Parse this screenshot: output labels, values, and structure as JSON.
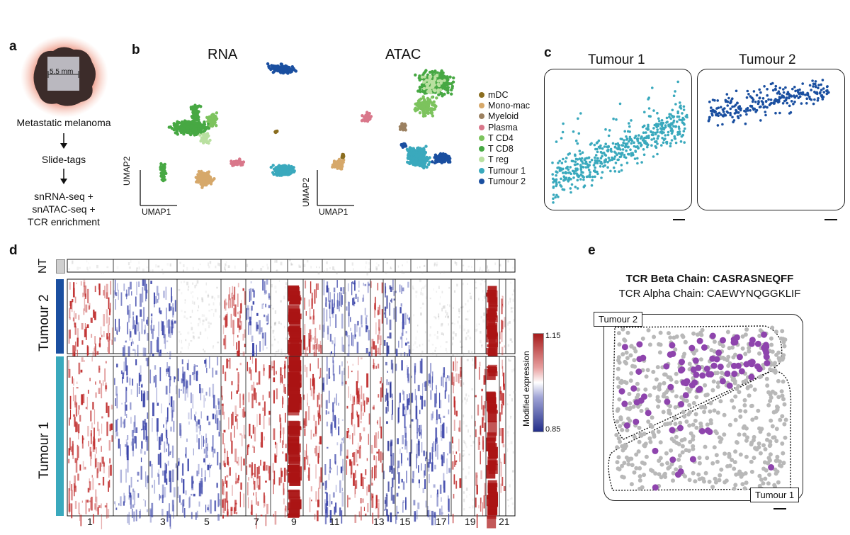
{
  "panels": {
    "a": "a",
    "b": "b",
    "c": "c",
    "d": "d",
    "e": "e"
  },
  "panel_a": {
    "scale_label": "5.5 mm",
    "steps": [
      "Metastatic melanoma",
      "Slide-tags",
      "snRNA-seq +\nsnATAC-seq +\nTCR enrichment"
    ]
  },
  "panel_b": {
    "titles": {
      "rna": "RNA",
      "atac": "ATAC"
    },
    "axis": {
      "x": "UMAP1",
      "y": "UMAP2"
    },
    "legend": [
      {
        "label": "mDC",
        "color": "#8a6d1f"
      },
      {
        "label": "Mono-mac",
        "color": "#d6a86a"
      },
      {
        "label": "Myeloid",
        "color": "#9b8060"
      },
      {
        "label": "Plasma",
        "color": "#d9778a"
      },
      {
        "label": "T CD4",
        "color": "#7cc35d"
      },
      {
        "label": "T CD8",
        "color": "#47a843"
      },
      {
        "label": "T reg",
        "color": "#b9e0a0"
      },
      {
        "label": "Tumour 1",
        "color": "#3aa9bd"
      },
      {
        "label": "Tumour 2",
        "color": "#1a4fa0"
      }
    ]
  },
  "panel_c": {
    "titles": [
      "Tumour 1",
      "Tumour 2"
    ],
    "colors": [
      "#3aa9bd",
      "#1a4fa0"
    ]
  },
  "panel_d": {
    "rows": {
      "nt": "NT",
      "t2": "Tumour 2",
      "t1": "Tumour 1"
    },
    "colorbar": {
      "max": "1.15",
      "min": "0.85",
      "label": "Modified expression"
    },
    "x_ticks": [
      "1",
      "3",
      "5",
      "7",
      "9",
      "11",
      "13",
      "15",
      "17",
      "19",
      "21"
    ]
  },
  "panel_e": {
    "beta": "TCR Beta Chain: CASRASNEQFF",
    "alpha": "TCR Alpha Chain: CAEWYNQGGKLIF",
    "region_labels": [
      "Tumour 2",
      "Tumour 1"
    ],
    "colors": {
      "highlight": "#8e44ad",
      "background": "#b8b8b8"
    }
  }
}
